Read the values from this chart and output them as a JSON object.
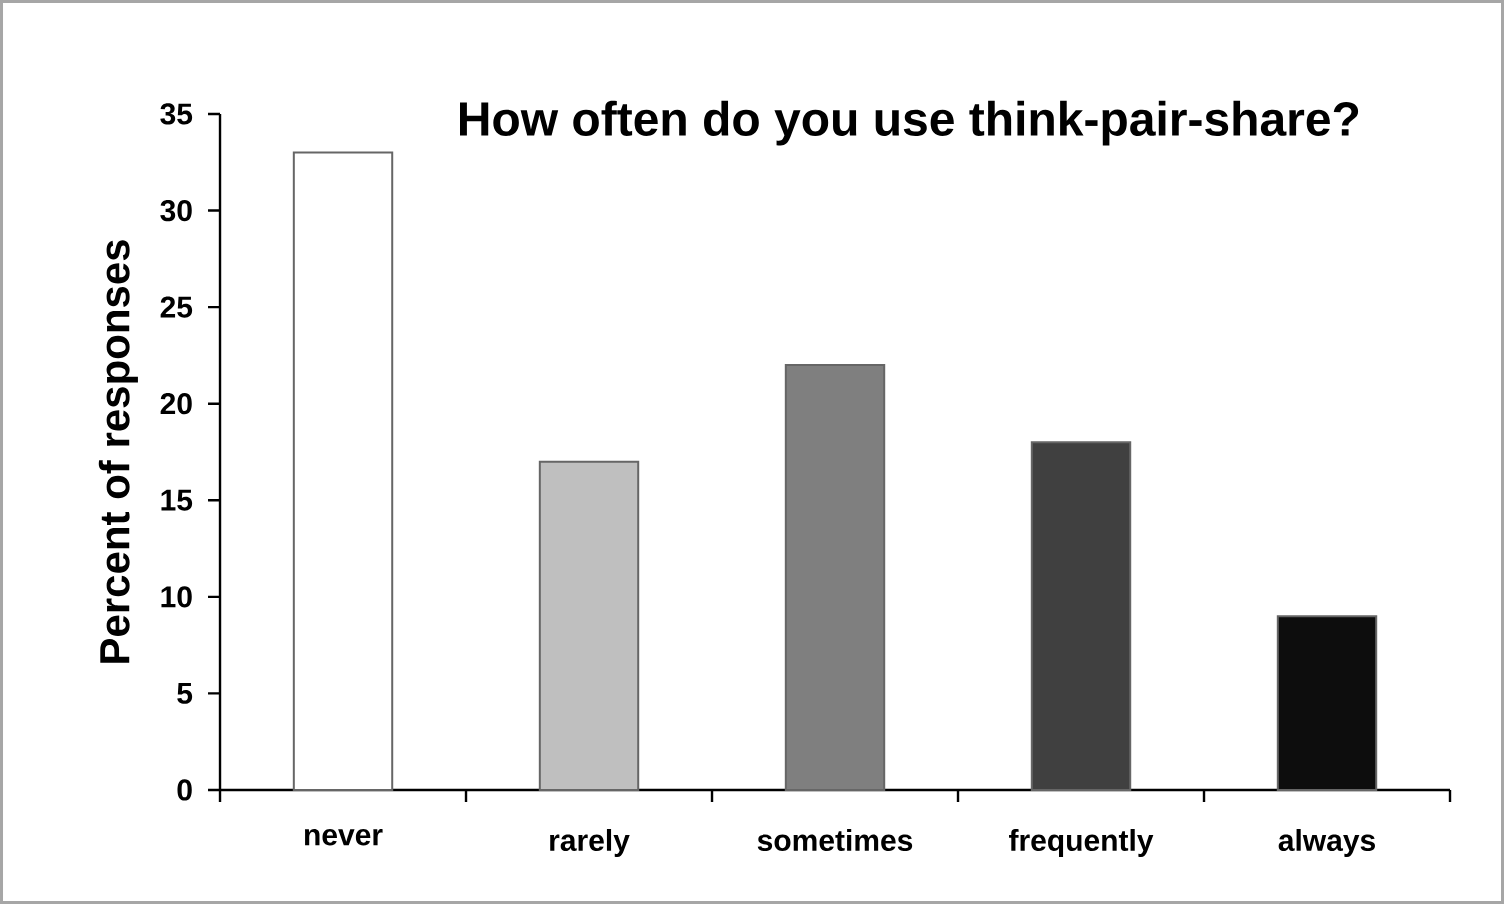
{
  "chart_data": {
    "type": "bar",
    "title": "How often do you use think-pair-share?",
    "ylabel": "Percent of responses",
    "categories": [
      "never",
      "rarely",
      "sometimes",
      "frequently",
      "always"
    ],
    "values": [
      33,
      17,
      22,
      18,
      9
    ],
    "colors": [
      "#ffffff",
      "#bfbfbf",
      "#7f7f7f",
      "#404040",
      "#0d0d0d"
    ],
    "ylim": [
      0,
      35
    ],
    "yticks": [
      0,
      5,
      10,
      15,
      20,
      25,
      30,
      35
    ],
    "grid": false
  }
}
